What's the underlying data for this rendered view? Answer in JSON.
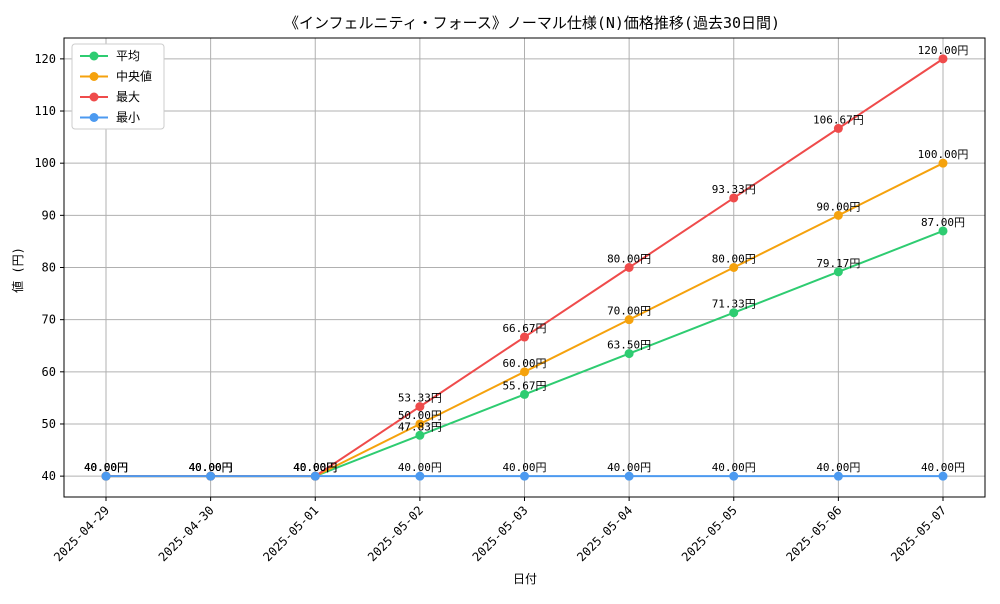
{
  "chart_data": {
    "type": "line",
    "title": "《インフェルニティ・フォース》ノーマル仕様(N)価格推移(過去30日間)",
    "xlabel": "日付",
    "ylabel": "値 (円)",
    "categories": [
      "2025-04-29",
      "2025-04-30",
      "2025-05-01",
      "2025-05-02",
      "2025-05-03",
      "2025-05-04",
      "2025-05-05",
      "2025-05-06",
      "2025-05-07"
    ],
    "ylim": [
      36,
      124
    ],
    "yticks": [
      40,
      50,
      60,
      70,
      80,
      90,
      100,
      110,
      120
    ],
    "grid": true,
    "legend_position": "top-left",
    "label_suffix": "円",
    "series": [
      {
        "name": "平均",
        "color": "#2ecc71",
        "values": [
          40.0,
          40.0,
          40.0,
          47.83,
          55.67,
          63.5,
          71.33,
          79.17,
          87.0
        ]
      },
      {
        "name": "中央値",
        "color": "#f5a20d",
        "values": [
          40.0,
          40.0,
          40.0,
          50.0,
          60.0,
          70.0,
          80.0,
          90.0,
          100.0
        ]
      },
      {
        "name": "最大",
        "color": "#ef4b4b",
        "values": [
          40.0,
          40.0,
          40.0,
          53.33,
          66.67,
          80.0,
          93.33,
          106.67,
          120.0
        ]
      },
      {
        "name": "最小",
        "color": "#4c9af0",
        "values": [
          40.0,
          40.0,
          40.0,
          40.0,
          40.0,
          40.0,
          40.0,
          40.0,
          40.0
        ]
      }
    ]
  }
}
